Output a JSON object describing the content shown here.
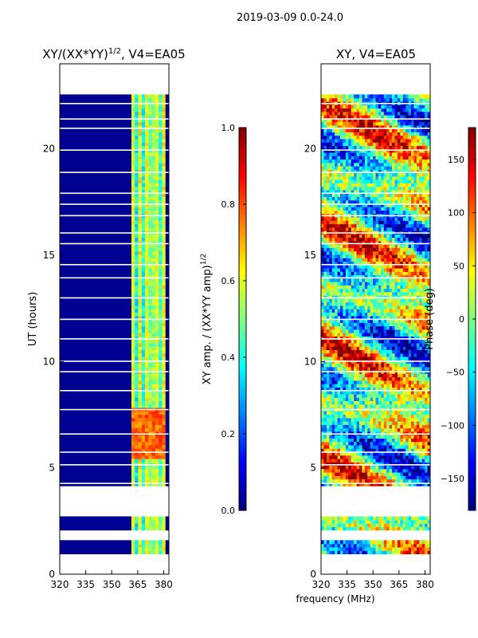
{
  "figure_title": "2019-03-09 0.0-24.0",
  "colors": {
    "jet": [
      "#00007f",
      "#0000ff",
      "#007fff",
      "#00ffff",
      "#7fff7f",
      "#ffff00",
      "#ff7f00",
      "#ff0000",
      "#7f0000"
    ]
  },
  "chart_data": [
    {
      "type": "heatmap",
      "title": "XY/(XX*YY)",
      "title_superscript": "1/2",
      "title_suffix": ", V4=EA05",
      "xlabel": "",
      "ylabel": "UT (hours)",
      "xlim": [
        320,
        383
      ],
      "ylim": [
        0,
        24
      ],
      "xticks": [
        320,
        335,
        350,
        365,
        380
      ],
      "yticks": [
        0,
        5,
        10,
        15,
        20
      ],
      "data_extent_hours": [
        1.0,
        22.5
      ],
      "active_freq_band_mhz": [
        361,
        380
      ],
      "colorbar": {
        "label": "XY amp. / (XX*YY amp)",
        "label_superscript": "1/2",
        "range": [
          0.0,
          1.0
        ],
        "ticks": [
          0.0,
          0.2,
          0.4,
          0.6,
          0.8,
          1.0
        ],
        "tick_labels": [
          "0.0",
          "0.2",
          "0.4",
          "0.6",
          "0.8",
          "1.0"
        ]
      }
    },
    {
      "type": "heatmap",
      "title": "XY, V4=EA05",
      "xlabel": "frequency (MHz)",
      "ylabel": "",
      "xlim": [
        320,
        383
      ],
      "ylim": [
        0,
        24
      ],
      "xticks": [
        320,
        335,
        350,
        365,
        380
      ],
      "yticks": [
        0,
        5,
        10,
        15,
        20
      ],
      "data_extent_hours": [
        1.0,
        22.5
      ],
      "colorbar": {
        "label": "Phase (deg)",
        "range": [
          -180,
          180
        ],
        "ticks": [
          -150,
          -100,
          -50,
          0,
          50,
          100,
          150
        ],
        "tick_labels": [
          "−150",
          "−100",
          "−50",
          "0",
          "50",
          "100",
          "150"
        ]
      }
    }
  ]
}
